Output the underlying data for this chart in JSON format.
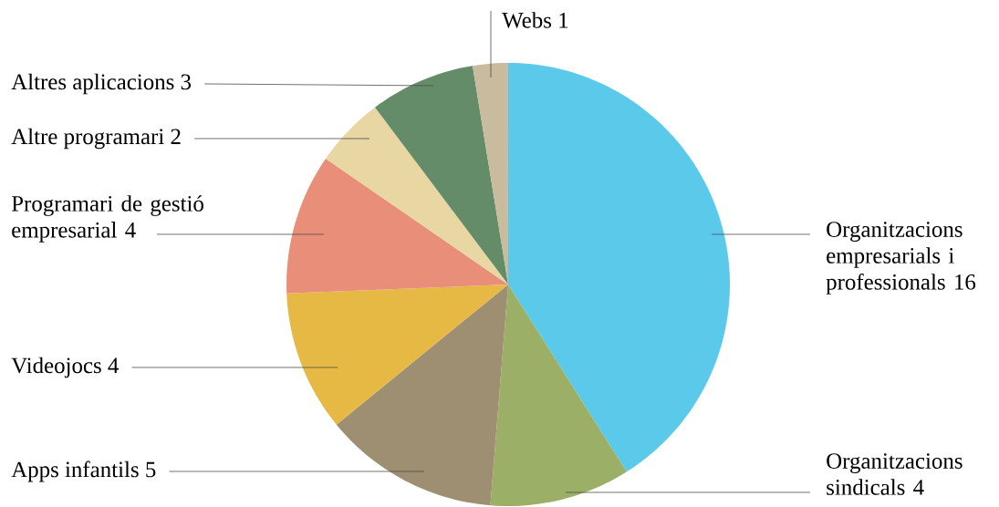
{
  "chart_data": {
    "type": "pie",
    "categories": [
      "Organitzacions empresarials i professionals 16",
      "Organitzacions sindicals 4",
      "Apps infantils 5",
      "Videojocs 4",
      "Programari de gestió empresarial 4",
      "Altre programari 2",
      "Altres aplicacions 3",
      "Webs 1"
    ],
    "values": [
      16,
      4,
      5,
      4,
      4,
      2,
      3,
      1
    ],
    "colors": [
      "#5bc9ea",
      "#9caf66",
      "#9e8f73",
      "#e6b944",
      "#e98e79",
      "#e8d7a3",
      "#648c69",
      "#c9bb9e"
    ]
  }
}
